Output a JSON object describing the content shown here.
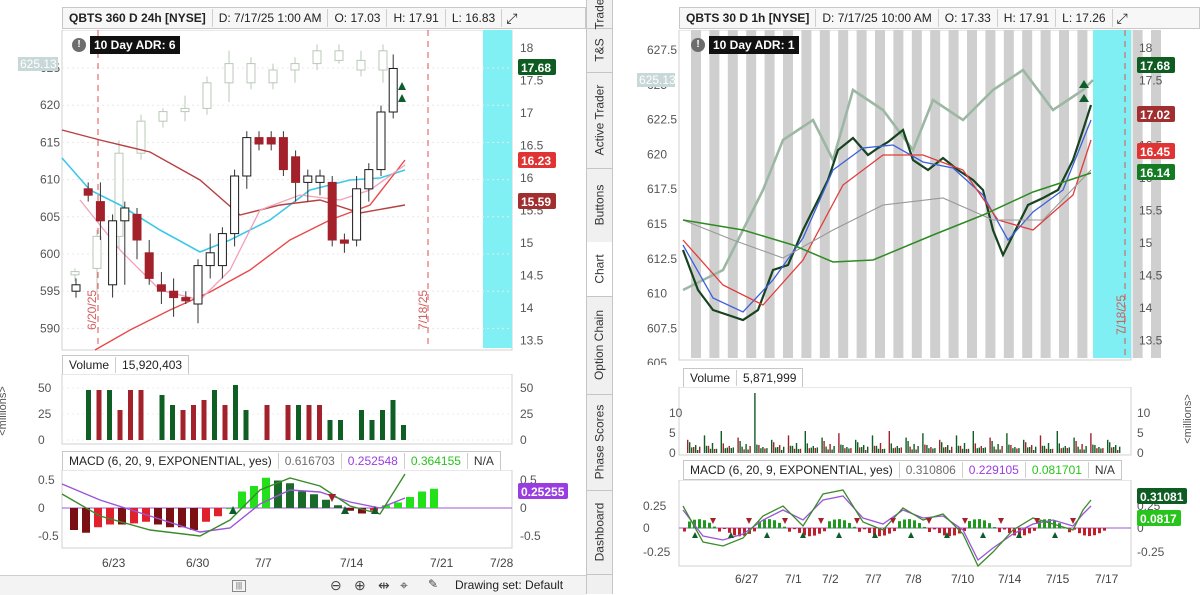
{
  "left": {
    "header": {
      "symbol": "QBTS 360 D 24h [NYSE]",
      "date": "D: 7/17/25 1:00 AM",
      "open": "O: 17.03",
      "high": "H: 17.91",
      "low": "L: 16.83"
    },
    "adr_label": "10 Day ADR: 6",
    "left_axis": [
      "625",
      "620",
      "615",
      "610",
      "605",
      "600",
      "595",
      "590"
    ],
    "left_axis_tag": "625.13",
    "right_axis": [
      "18",
      "17.5",
      "17",
      "16.5",
      "16",
      "15.5",
      "15",
      "14.5",
      "14",
      "13.5"
    ],
    "price_tags": {
      "last": "17.68",
      "ma1": "16.23",
      "ma2": "15.59"
    },
    "date_markers": [
      "6/20/25",
      "7/18/25"
    ],
    "volume": {
      "label": "Volume",
      "value": "15,920,403",
      "axis": [
        "50",
        "25",
        "0"
      ],
      "unit": "<millions>",
      "bars": [
        5,
        5,
        5,
        3,
        5,
        5,
        0,
        4.5,
        3.5,
        3,
        3.5,
        4,
        5,
        3.5,
        5.5,
        3,
        0,
        3.5,
        0,
        3.5,
        3.5,
        3.5,
        3.5,
        2,
        2,
        0,
        3,
        2,
        3,
        4,
        1.5
      ]
    },
    "macd": {
      "label": "MACD (6, 20, 9, EXPONENTIAL, yes)",
      "v1": "0.616703",
      "v2": "0.252548",
      "v3": "0.364155",
      "na": "N/A",
      "tag": "0.25255",
      "axis": [
        "0.5",
        "0",
        "-0.5"
      ],
      "hist": [
        -0.4,
        -0.45,
        -0.35,
        -0.3,
        -0.3,
        -0.28,
        -0.25,
        -0.3,
        -0.35,
        -0.35,
        -0.4,
        -0.25,
        -0.15,
        0.0,
        0.3,
        0.4,
        0.55,
        0.5,
        0.45,
        0.3,
        0.25,
        0.15,
        0.05,
        -0.05,
        -0.1,
        -0.05,
        0.05,
        0.1,
        0.2,
        0.3,
        0.35
      ]
    },
    "xaxis": [
      "6/23",
      "6/30",
      "7/7",
      "7/14",
      "7/21",
      "7/28"
    ]
  },
  "right": {
    "header": {
      "symbol": "QBTS 30 D 1h [NYSE]",
      "date": "D: 7/17/25 10:00 AM",
      "open": "O: 17.33",
      "high": "H: 17.91",
      "low": "L: 17.26"
    },
    "adr_label": "10 Day ADR: 1",
    "left_axis": [
      "627.5",
      "625",
      "622.5",
      "620",
      "617.5",
      "615",
      "612.5",
      "610",
      "607.5",
      "605"
    ],
    "left_axis_tag": "625.13",
    "right_axis": [
      "18",
      "17.5",
      "17",
      "16.5",
      "16",
      "15.5",
      "15",
      "14.5",
      "14",
      "13.5"
    ],
    "price_tags": {
      "last": "17.68",
      "ma1": "17.02",
      "ma2": "16.45",
      "ma3": "16.14"
    },
    "date_marker": "7/18/25",
    "volume": {
      "label": "Volume",
      "value": "5,871,999",
      "axis": [
        "10",
        "5",
        "0"
      ],
      "unit": "<millions>"
    },
    "macd": {
      "label": "MACD (6, 20, 9, EXPONENTIAL, yes)",
      "v1": "0.310806",
      "v2": "0.229105",
      "v3": "0.081701",
      "na": "N/A",
      "tag1": "0.31081",
      "tag2": "0.0817",
      "axis": [
        "0.25",
        "0",
        "-0.25"
      ]
    },
    "xaxis": [
      "6/27",
      "7/1",
      "7/2",
      "7/7",
      "7/8",
      "7/10",
      "7/14",
      "7/15",
      "7/17"
    ]
  },
  "side_tabs": [
    "Trade",
    "T&S",
    "Active Trader",
    "Buttons",
    "Chart",
    "Option Chain",
    "Phase Scores",
    "Dashboard"
  ],
  "bottom": {
    "drawing_set": "Drawing set: Default"
  },
  "candles_left": [
    [
      14.3,
      14.4,
      14.1,
      14.2,
      "g"
    ],
    [
      15.8,
      15.9,
      15.6,
      15.7,
      "r"
    ],
    [
      15.6,
      15.9,
      15.0,
      15.3,
      "r"
    ],
    [
      15.3,
      15.4,
      14.1,
      14.3,
      "g"
    ],
    [
      15.5,
      15.6,
      14.3,
      15.3,
      "g"
    ],
    [
      15.4,
      15.5,
      14.7,
      15.0,
      "r"
    ],
    [
      14.8,
      15.0,
      14.3,
      14.4,
      "r"
    ],
    [
      14.3,
      14.5,
      14.0,
      14.2,
      "r"
    ],
    [
      14.2,
      14.4,
      13.8,
      14.1,
      "r"
    ],
    [
      14.1,
      14.2,
      14.0,
      14.05,
      "r"
    ],
    [
      14.0,
      14.7,
      13.7,
      14.6,
      "g"
    ],
    [
      14.6,
      15.1,
      14.4,
      14.8,
      "g"
    ],
    [
      14.6,
      15.2,
      14.4,
      15.1,
      "g"
    ],
    [
      15.1,
      16.1,
      14.9,
      16.0,
      "g"
    ],
    [
      16.0,
      16.7,
      15.8,
      16.6,
      "g"
    ],
    [
      16.6,
      16.7,
      16.4,
      16.5,
      "r"
    ],
    [
      16.6,
      16.7,
      16.4,
      16.5,
      "r"
    ],
    [
      16.6,
      16.7,
      16.0,
      16.1,
      "r"
    ],
    [
      16.3,
      16.4,
      15.6,
      15.9,
      "r"
    ],
    [
      15.9,
      16.1,
      15.6,
      16.0,
      "g"
    ],
    [
      15.9,
      16.1,
      15.7,
      16.0,
      "g"
    ],
    [
      15.9,
      16.0,
      14.9,
      15.0,
      "r"
    ],
    [
      15.0,
      15.1,
      14.8,
      14.95,
      "r"
    ],
    [
      15.0,
      16.0,
      14.9,
      15.8,
      "g"
    ],
    [
      15.8,
      16.2,
      15.6,
      16.1,
      "g"
    ],
    [
      16.1,
      17.1,
      16.0,
      17.0,
      "g"
    ],
    [
      17.0,
      17.9,
      16.9,
      17.68,
      "g"
    ]
  ],
  "ghost_left": [
    [
      14.3,
      14.4,
      14.2,
      14.35
    ],
    [
      14.4,
      15.0,
      14.0,
      14.9
    ],
    [
      14.9,
      16.4,
      14.7,
      16.2
    ],
    [
      16.2,
      16.8,
      16.1,
      16.7
    ],
    [
      16.7,
      16.9,
      16.6,
      16.85
    ],
    [
      16.85,
      17.1,
      16.7,
      16.9
    ],
    [
      16.9,
      17.4,
      16.8,
      17.3
    ],
    [
      17.3,
      17.8,
      17.0,
      17.6
    ],
    [
      17.6,
      17.7,
      17.2,
      17.3
    ],
    [
      17.3,
      17.6,
      17.2,
      17.5
    ],
    [
      17.5,
      17.7,
      17.3,
      17.6
    ],
    [
      17.6,
      17.9,
      17.5,
      17.8
    ],
    [
      17.8,
      17.9,
      17.6,
      17.65
    ],
    [
      17.65,
      17.8,
      17.4,
      17.5
    ],
    [
      17.5,
      17.9,
      17.3,
      17.8
    ]
  ]
}
